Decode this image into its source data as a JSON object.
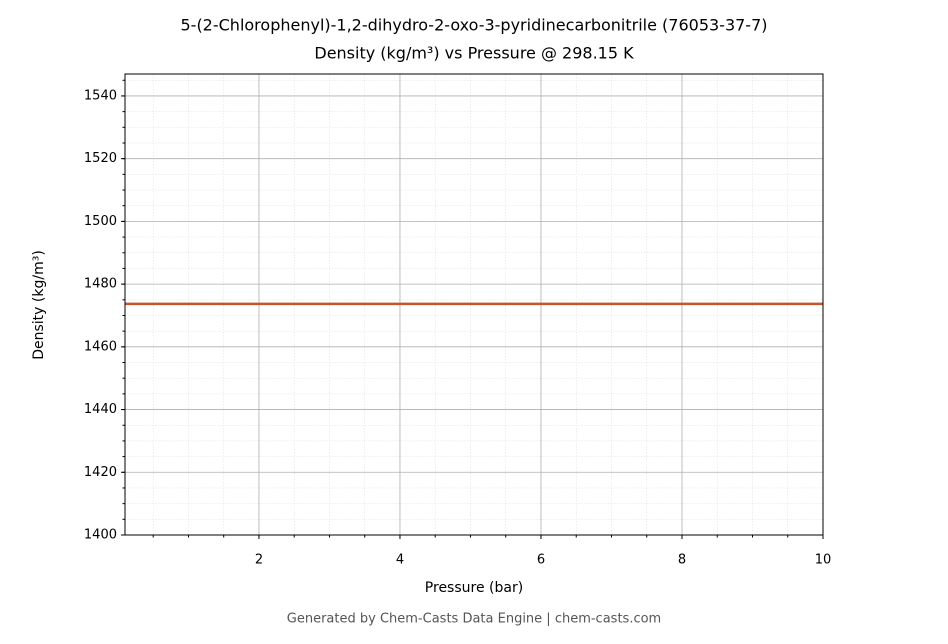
{
  "chart_data": {
    "type": "line",
    "title": "5-(2-Chlorophenyl)-1,2-dihydro-2-oxo-3-pyridinecarbonitrile (76053-37-7)",
    "subtitle": "Density (kg/m³) vs Pressure @ 298.15 K",
    "x_label": "Pressure (bar)",
    "y_label": "Density (kg/m³)",
    "footer": "Generated by Chem-Casts Data Engine | chem-casts.com",
    "x": [
      0.1,
      10
    ],
    "series": [
      {
        "name": "Density",
        "color": "#c8552a",
        "values": [
          1473.7,
          1473.7
        ]
      }
    ],
    "xlim": [
      0.1,
      10
    ],
    "xticks": [
      2,
      4,
      6,
      8,
      10
    ],
    "ylim": [
      1400,
      1547
    ],
    "yticks": [
      1400,
      1420,
      1440,
      1460,
      1480,
      1500,
      1520,
      1540
    ],
    "grid": true
  }
}
